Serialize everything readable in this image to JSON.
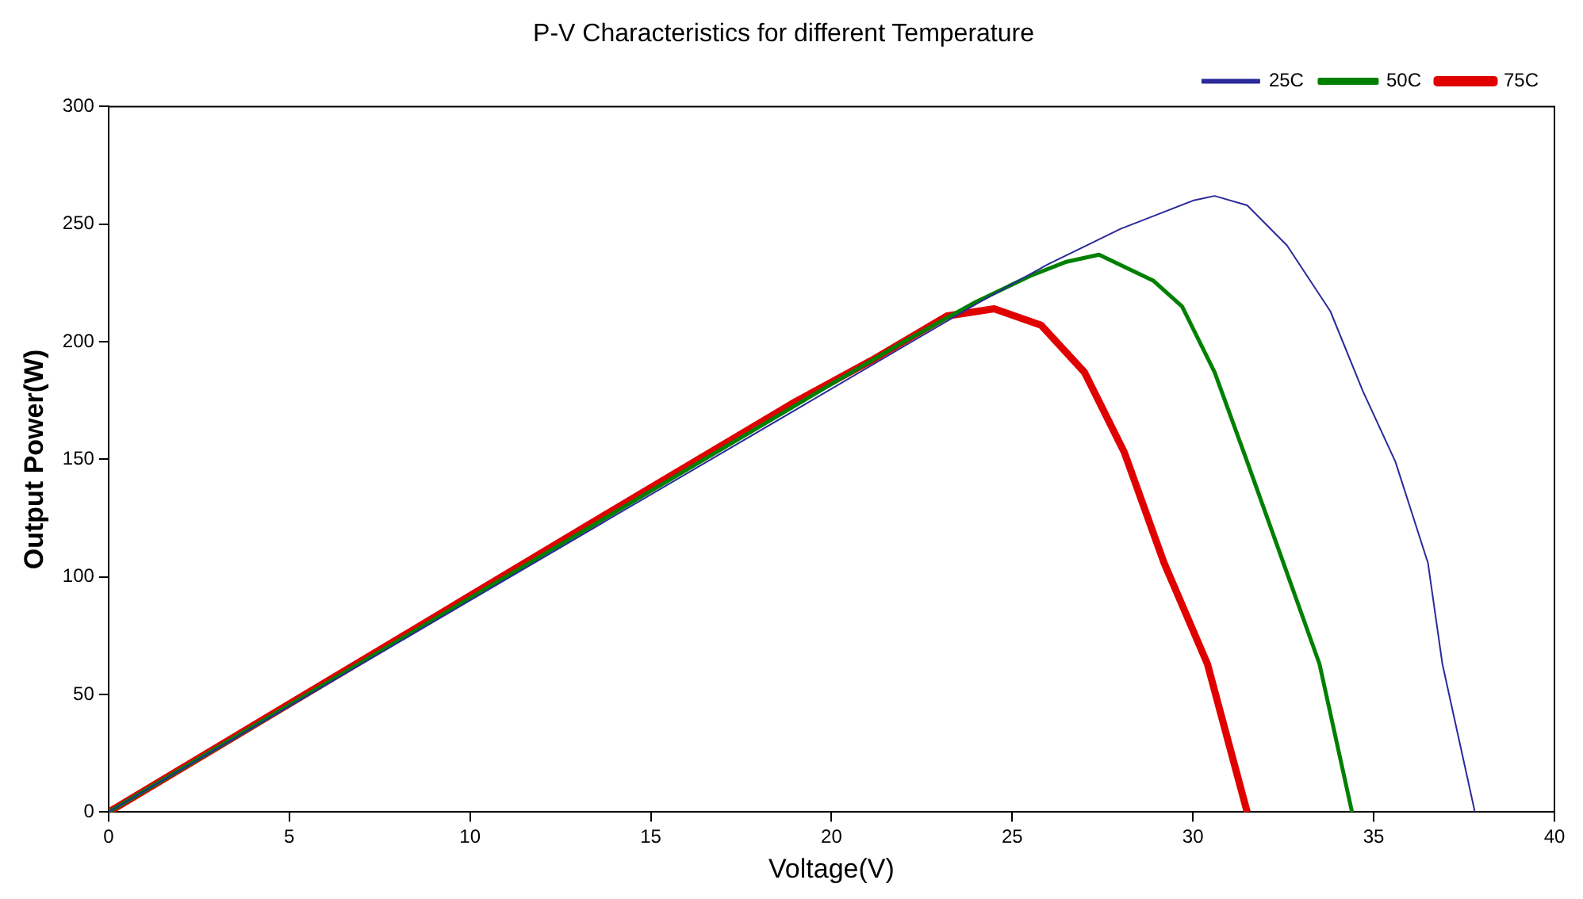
{
  "chart_data": {
    "type": "line",
    "title": "P-V Characteristics for different Temperature",
    "xlabel": "Voltage(V)",
    "ylabel": "Output Power(W)",
    "xlim": [
      0,
      40
    ],
    "xticks": [
      0,
      5,
      10,
      15,
      20,
      25,
      30,
      35,
      40
    ],
    "ylim": [
      0,
      300
    ],
    "yticks": [
      0,
      50,
      100,
      150,
      200,
      250,
      300
    ],
    "grid": false,
    "legend": "top right",
    "marker": "none",
    "line_style": "solid",
    "series": [
      {
        "name": "25C",
        "color": "#2a2a9a",
        "x": [
          0,
          5,
          10,
          15,
          20,
          22,
          24,
          26,
          28,
          29,
          30,
          30.6,
          31.5,
          32.6,
          33.8,
          34.7,
          35.6,
          36.5,
          36.9,
          37.8
        ],
        "values": [
          0,
          45,
          90,
          135,
          180,
          198,
          216,
          233,
          248,
          254,
          260,
          262,
          258,
          241,
          213,
          179,
          149,
          106,
          63,
          0
        ]
      },
      {
        "name": "50C",
        "color": "#008000",
        "x": [
          0,
          5,
          10,
          15,
          20,
          22,
          24,
          25.5,
          26.5,
          27.4,
          28.9,
          29.7,
          30.6,
          31.5,
          32.5,
          33.5,
          34.4
        ],
        "values": [
          0,
          45.5,
          91,
          136.5,
          182,
          200,
          217,
          228,
          234,
          237,
          226,
          215,
          187,
          149,
          106,
          63,
          0
        ]
      },
      {
        "name": "75C",
        "color": "#e00000",
        "x": [
          0,
          5,
          10,
          15,
          19,
          21.1,
          23.2,
          24.5,
          25.8,
          27,
          28.1,
          29.2,
          30.4,
          31.5
        ],
        "values": [
          0,
          46,
          92,
          138,
          174.5,
          192,
          211,
          214,
          207,
          187,
          153,
          106,
          63,
          0
        ]
      }
    ]
  }
}
